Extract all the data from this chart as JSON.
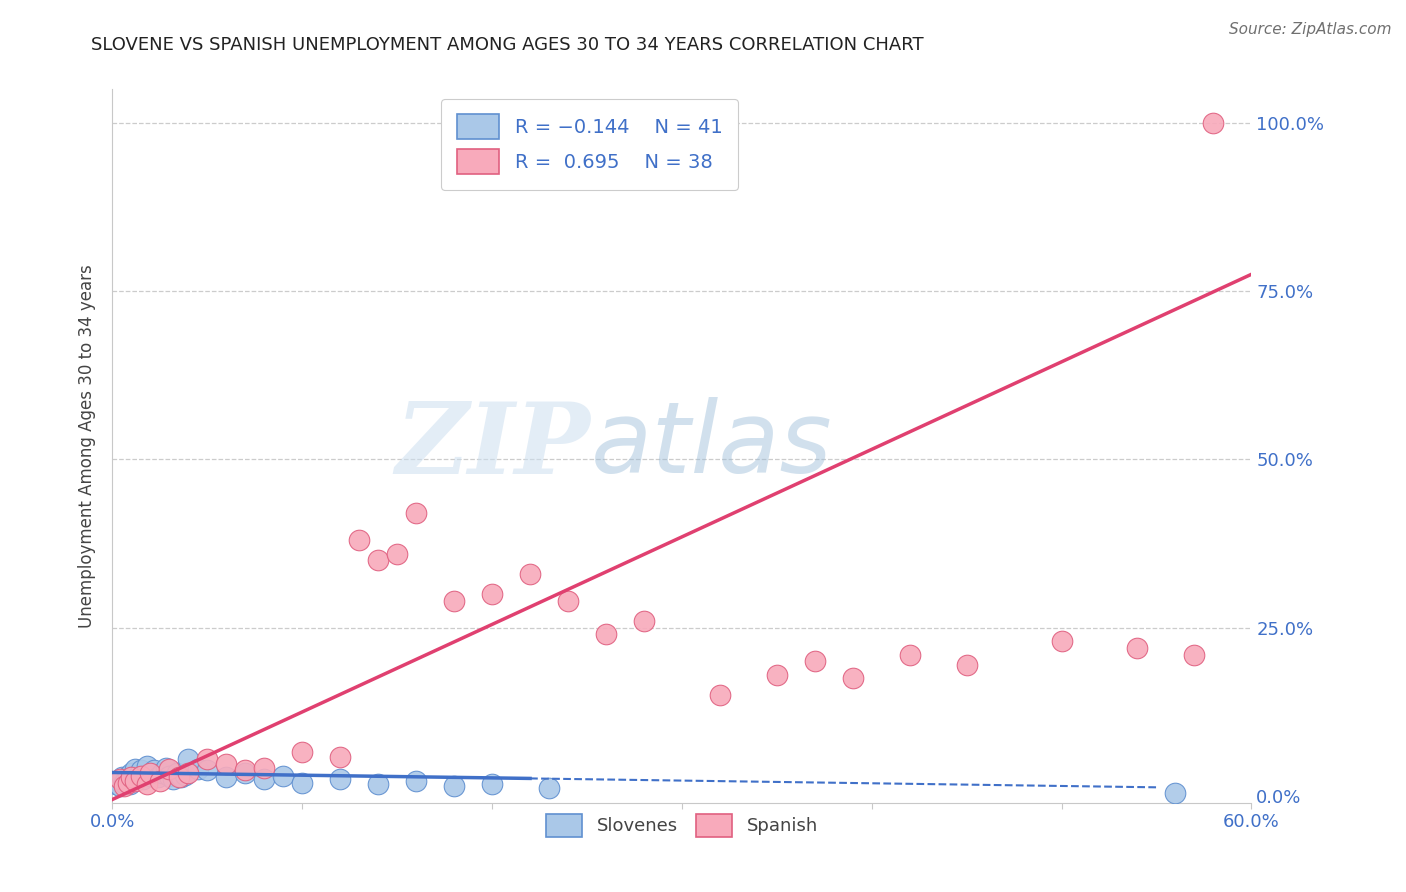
{
  "title": "SLOVENE VS SPANISH UNEMPLOYMENT AMONG AGES 30 TO 34 YEARS CORRELATION CHART",
  "source": "Source: ZipAtlas.com",
  "ylabel": "Unemployment Among Ages 30 to 34 years",
  "xlim": [
    0.0,
    0.6
  ],
  "ylim": [
    -0.01,
    1.05
  ],
  "xticks": [
    0.0,
    0.1,
    0.2,
    0.3,
    0.4,
    0.5,
    0.6
  ],
  "xticklabels": [
    "0.0%",
    "",
    "",
    "",
    "",
    "",
    "60.0%"
  ],
  "yticks": [
    0.0,
    0.25,
    0.5,
    0.75,
    1.0
  ],
  "yticklabels": [
    "0.0%",
    "25.0%",
    "50.0%",
    "75.0%",
    "100.0%"
  ],
  "watermark_zip": "ZIP",
  "watermark_atlas": "atlas",
  "legend_label1": "Slovenes",
  "legend_label2": "Spanish",
  "slovene_color": "#aac8e8",
  "spanish_color": "#f8aabb",
  "slovene_edge_color": "#6090d0",
  "spanish_edge_color": "#e06080",
  "line_slovene_color": "#4070c8",
  "line_spanish_color": "#e04070",
  "slovene_x": [
    0.002,
    0.003,
    0.004,
    0.005,
    0.006,
    0.007,
    0.008,
    0.009,
    0.01,
    0.011,
    0.012,
    0.013,
    0.014,
    0.015,
    0.016,
    0.018,
    0.02,
    0.022,
    0.024,
    0.026,
    0.028,
    0.03,
    0.032,
    0.034,
    0.036,
    0.038,
    0.04,
    0.045,
    0.05,
    0.06,
    0.07,
    0.08,
    0.09,
    0.1,
    0.12,
    0.14,
    0.16,
    0.18,
    0.2,
    0.23,
    0.56
  ],
  "slovene_y": [
    0.018,
    0.022,
    0.015,
    0.028,
    0.02,
    0.025,
    0.03,
    0.018,
    0.035,
    0.022,
    0.04,
    0.028,
    0.032,
    0.038,
    0.025,
    0.045,
    0.03,
    0.038,
    0.028,
    0.035,
    0.042,
    0.03,
    0.025,
    0.035,
    0.028,
    0.032,
    0.055,
    0.04,
    0.038,
    0.028,
    0.035,
    0.025,
    0.03,
    0.02,
    0.025,
    0.018,
    0.022,
    0.015,
    0.018,
    0.012,
    0.005
  ],
  "spanish_x": [
    0.004,
    0.006,
    0.008,
    0.01,
    0.012,
    0.015,
    0.018,
    0.02,
    0.025,
    0.03,
    0.035,
    0.04,
    0.05,
    0.06,
    0.07,
    0.08,
    0.1,
    0.12,
    0.13,
    0.14,
    0.15,
    0.16,
    0.18,
    0.2,
    0.22,
    0.24,
    0.26,
    0.28,
    0.32,
    0.35,
    0.37,
    0.39,
    0.42,
    0.45,
    0.5,
    0.54,
    0.57,
    0.58
  ],
  "spanish_y": [
    0.025,
    0.015,
    0.02,
    0.028,
    0.022,
    0.03,
    0.018,
    0.035,
    0.022,
    0.04,
    0.028,
    0.035,
    0.055,
    0.048,
    0.038,
    0.042,
    0.065,
    0.058,
    0.38,
    0.35,
    0.36,
    0.42,
    0.29,
    0.3,
    0.33,
    0.29,
    0.24,
    0.26,
    0.15,
    0.18,
    0.2,
    0.175,
    0.21,
    0.195,
    0.23,
    0.22,
    0.21,
    1.0
  ],
  "grid_color": "#cccccc",
  "bg_color": "#ffffff",
  "title_color": "#222222",
  "tick_color": "#4070c8",
  "legend_text_color": "#4070c8",
  "slovene_line_slope": -0.04,
  "slovene_line_intercept": 0.035,
  "spanish_line_slope": 1.3,
  "spanish_line_intercept": -0.005
}
